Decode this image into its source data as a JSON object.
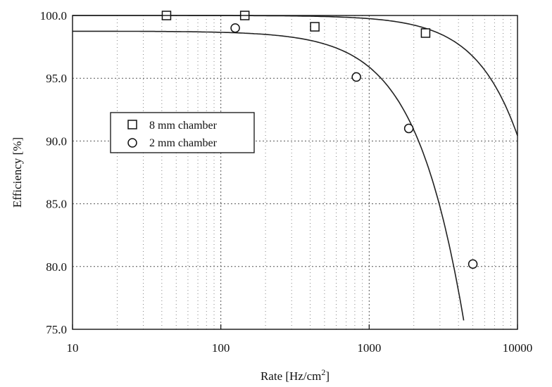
{
  "chart_data": {
    "type": "scatter",
    "title": "",
    "xlabel": "Rate [Hz/cm",
    "xlabel_sup": "2",
    "xlabel_end": "]",
    "ylabel": "Efficiency [%]",
    "xscale": "log",
    "xlim": [
      10,
      10000
    ],
    "ylim": [
      75.0,
      100.0
    ],
    "x_ticks": [
      "10",
      "100",
      "1000",
      "10000"
    ],
    "y_ticks": [
      "75.0",
      "80.0",
      "85.0",
      "90.0",
      "95.0",
      "100.0"
    ],
    "grid": true,
    "legend_position": "center-left",
    "series": [
      {
        "name": "8 mm chamber",
        "marker": "square",
        "x": [
          43,
          145,
          430,
          2400
        ],
        "y": [
          100.0,
          100.0,
          99.1,
          98.6
        ]
      },
      {
        "name": "2 mm chamber",
        "marker": "circle",
        "x": [
          125,
          820,
          1850,
          5000
        ],
        "y": [
          99.0,
          95.1,
          91.0,
          80.2
        ]
      }
    ]
  }
}
